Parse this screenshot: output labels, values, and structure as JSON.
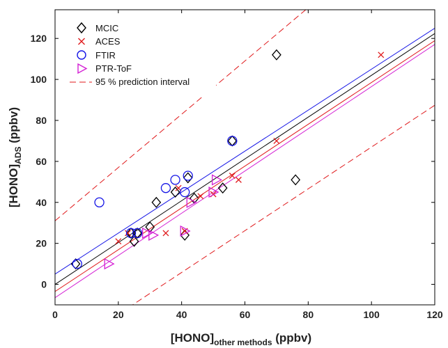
{
  "chart_data": {
    "type": "scatter",
    "xlabel": {
      "main": "[HONO]",
      "sub": "other methods",
      "unit": " (ppbv)"
    },
    "ylabel": {
      "main": "[HONO]",
      "sub": "ADS",
      "unit": " (ppbv)"
    },
    "xlim": [
      0,
      120
    ],
    "ylim": [
      -10,
      134
    ],
    "xticks": [
      "0",
      "20",
      "40",
      "60",
      "80",
      "100",
      "120"
    ],
    "yticks": [
      "0",
      "20",
      "40",
      "60",
      "80",
      "100",
      "120"
    ],
    "xtick_values": [
      0,
      20,
      40,
      60,
      80,
      100,
      120
    ],
    "ytick_values": [
      0,
      20,
      40,
      60,
      80,
      100,
      120
    ],
    "grid": false,
    "legend_position": "top-left",
    "series": [
      {
        "name": "MCIC",
        "marker": "diamond",
        "color": "#000000",
        "points": [
          [
            6.5,
            10
          ],
          [
            24,
            25
          ],
          [
            25,
            21
          ],
          [
            26,
            25
          ],
          [
            30,
            28
          ],
          [
            32,
            40
          ],
          [
            38,
            45
          ],
          [
            41,
            24
          ],
          [
            42,
            52
          ],
          [
            44,
            42
          ],
          [
            53,
            47
          ],
          [
            56,
            70
          ],
          [
            70,
            112
          ],
          [
            76,
            51
          ]
        ]
      },
      {
        "name": "ACES",
        "marker": "x",
        "color": "#e0191b",
        "points": [
          [
            20,
            21
          ],
          [
            23,
            25
          ],
          [
            35,
            25
          ],
          [
            39,
            47
          ],
          [
            41,
            26
          ],
          [
            46,
            43
          ],
          [
            50,
            44
          ],
          [
            56,
            53
          ],
          [
            58,
            51
          ],
          [
            70,
            70
          ],
          [
            103,
            112
          ]
        ]
      },
      {
        "name": "FTIR",
        "marker": "circle",
        "color": "#1414e6",
        "points": [
          [
            7,
            10
          ],
          [
            14,
            40
          ],
          [
            24,
            25
          ],
          [
            26,
            25
          ],
          [
            35,
            47
          ],
          [
            38,
            51
          ],
          [
            41,
            45
          ],
          [
            42,
            53
          ],
          [
            56,
            70
          ]
        ]
      },
      {
        "name": "PTR-ToF",
        "marker": "triangle-right",
        "color": "#d420d4",
        "points": [
          [
            17,
            10
          ],
          [
            29,
            25
          ],
          [
            31,
            24
          ],
          [
            41,
            26
          ],
          [
            43,
            40
          ],
          [
            50,
            45
          ],
          [
            51,
            51
          ]
        ]
      }
    ],
    "fit_lines": [
      {
        "color": "#1414e6",
        "intercept": 5,
        "slope": 1.0
      },
      {
        "color": "#000000",
        "intercept": 0,
        "slope": 1.02
      },
      {
        "color": "#e0191b",
        "intercept": -3.5,
        "slope": 1.02
      },
      {
        "color": "#d420d4",
        "intercept": -6.5,
        "slope": 1.03
      }
    ],
    "prediction_interval": {
      "name": "95 % prediction interval",
      "color": "#e0191b",
      "lines": [
        {
          "intercept": 31,
          "slope": 1.3
        },
        {
          "intercept": -35,
          "slope": 1.02
        }
      ]
    }
  }
}
